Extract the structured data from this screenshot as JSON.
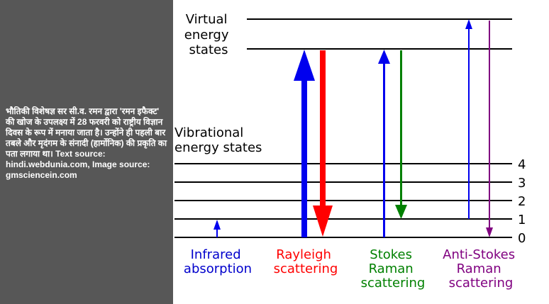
{
  "caption": "भौतिकी विशेषज्ञ सर सी.व. रमन द्वारा 'रमन इफैक्ट' की खोज के उपलक्ष्य में 28 फरवरी को राष्ट्रीय विज्ञान दिवस के रूप में मनाया जाता है। उन्होंने ही पहली बार तबले और मृदंगम के संनादी (हार्मोनिक) की प्रकृति का पता लगाया था। Text source: hindi.webdunia.com, Image source:  gmsciencein.com",
  "diagram": {
    "virtual_label": [
      "Virtual",
      "energy",
      "states"
    ],
    "vibrational_label": [
      "Vibrational",
      "energy states"
    ],
    "levels": [
      "4",
      "3",
      "2",
      "1",
      "0"
    ],
    "processes": {
      "infrared": {
        "lines": [
          "Infrared",
          "absorption"
        ],
        "color": "#0000cc"
      },
      "rayleigh": {
        "lines": [
          "Rayleigh",
          "scattering"
        ],
        "color": "#ff0000"
      },
      "stokes": {
        "lines": [
          "Stokes",
          "Raman",
          "scattering"
        ],
        "color": "#008000"
      },
      "antistokes": {
        "lines": [
          "Anti-Stokes",
          "Raman",
          "scattering"
        ],
        "color": "#800080"
      }
    },
    "arrow_colors": {
      "blue": "#0000ee",
      "red": "#ff0000",
      "green": "#008000",
      "purple": "#800080"
    }
  }
}
